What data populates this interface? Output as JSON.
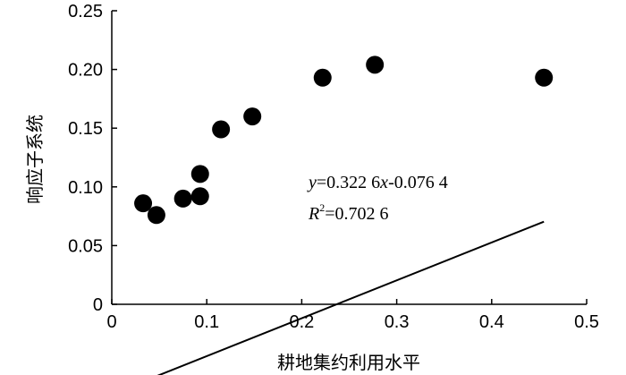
{
  "chart_data": {
    "type": "scatter",
    "xlabel": "耕地集约利用水平",
    "ylabel": "响应子系统",
    "xlim": [
      0,
      0.5
    ],
    "ylim": [
      0,
      0.25
    ],
    "x_ticks": [
      0,
      0.1,
      0.2,
      0.3,
      0.4,
      0.5
    ],
    "x_tick_labels": [
      "0",
      "0.1",
      "0.2",
      "0.3",
      "0.4",
      "0.5"
    ],
    "y_ticks": [
      0,
      0.05,
      0.1,
      0.15,
      0.2,
      0.25
    ],
    "y_tick_labels": [
      "0",
      "0.05",
      "0.10",
      "0.15",
      "0.20",
      "0.25"
    ],
    "points": [
      {
        "x": 0.033,
        "y": 0.086
      },
      {
        "x": 0.047,
        "y": 0.076
      },
      {
        "x": 0.075,
        "y": 0.09
      },
      {
        "x": 0.093,
        "y": 0.092
      },
      {
        "x": 0.093,
        "y": 0.111
      },
      {
        "x": 0.115,
        "y": 0.149
      },
      {
        "x": 0.148,
        "y": 0.16
      },
      {
        "x": 0.222,
        "y": 0.193
      },
      {
        "x": 0.277,
        "y": 0.204
      },
      {
        "x": 0.455,
        "y": 0.193
      }
    ],
    "trendline": {
      "x_start": 0.033,
      "x_end": 0.455,
      "slope": 0.3226,
      "intercept": -0.0764
    },
    "equation": {
      "var_y": "y",
      "eq_rhs_a": "=0.322 6",
      "var_x": "x",
      "eq_rhs_b": "-0.076 4",
      "r_var": "R",
      "r_sup": "2",
      "r_value": "=0.702 6"
    },
    "grid": false,
    "legend": "none",
    "marker_color": "#000000"
  }
}
